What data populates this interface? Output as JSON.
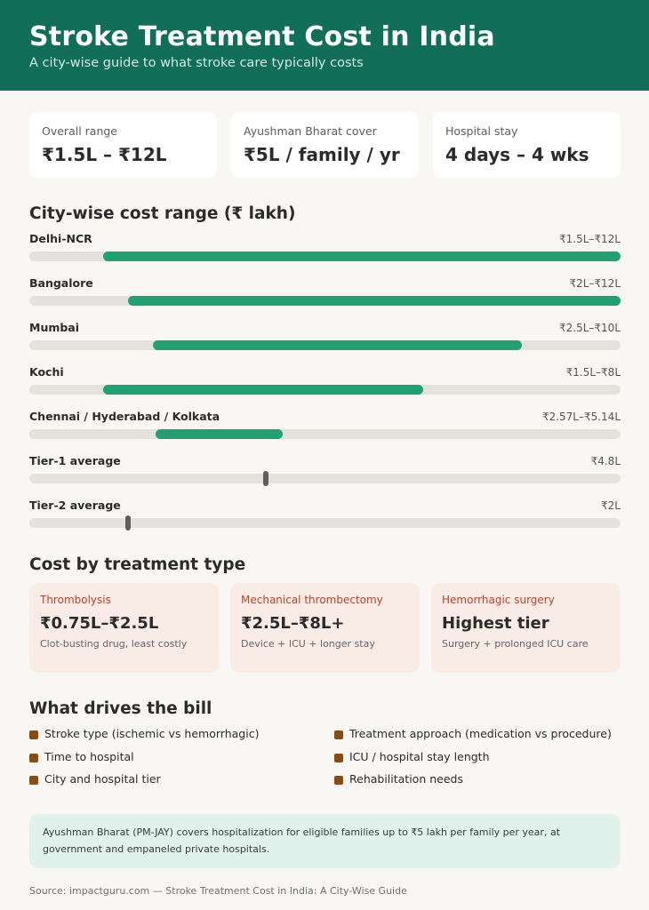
{
  "header": {
    "title": "Stroke Treatment Cost in India",
    "subtitle": "A city-wise guide to what stroke care typically costs"
  },
  "stats": [
    {
      "label": "Overall range",
      "value": "₹1.5L – ₹12L"
    },
    {
      "label": "Ayushman Bharat cover",
      "value": "₹5L / family / yr"
    },
    {
      "label": "Hospital stay",
      "value": "4 days – 4 wks"
    }
  ],
  "city_section_title": "City-wise cost range (₹ lakh)",
  "chart_data": {
    "type": "bar",
    "title": "City-wise cost range (₹ lakh)",
    "xlim": [
      0,
      12
    ],
    "rows": [
      {
        "label": "Delhi-NCR",
        "value_text": "₹1.5L–₹12L",
        "min": 1.5,
        "max": 12
      },
      {
        "label": "Bangalore",
        "value_text": "₹2L–₹12L",
        "min": 2,
        "max": 12
      },
      {
        "label": "Mumbai",
        "value_text": "₹2.5L–₹10L",
        "min": 2.5,
        "max": 10
      },
      {
        "label": "Kochi",
        "value_text": "₹1.5L–₹8L",
        "min": 1.5,
        "max": 8
      },
      {
        "label": "Chennai / Hyderabad / Kolkata",
        "value_text": "₹2.57L–₹5.14L",
        "min": 2.57,
        "max": 5.14
      },
      {
        "label": "Tier-1 average",
        "value_text": "₹4.8L",
        "point": 4.8
      },
      {
        "label": "Tier-2 average",
        "value_text": "₹2L",
        "point": 2
      }
    ]
  },
  "treatment_section_title": "Cost by treatment type",
  "treatments": [
    {
      "name": "Thrombolysis",
      "value": "₹0.75L–₹2.5L",
      "note": "Clot-busting drug, least costly"
    },
    {
      "name": "Mechanical thrombectomy",
      "value": "₹2.5L–₹8L+",
      "note": "Device + ICU + longer stay"
    },
    {
      "name": "Hemorrhagic surgery",
      "value": "Highest tier",
      "note": "Surgery + prolonged ICU care"
    }
  ],
  "drivers_section_title": "What drives the bill",
  "drivers": [
    "Stroke type (ischemic vs hemorrhagic)",
    "Treatment approach (medication vs procedure)",
    "Time to hospital",
    "ICU / hospital stay length",
    "City and hospital tier",
    "Rehabilitation needs"
  ],
  "colors": {
    "header_bg": "#116e58",
    "bar": "#21a072",
    "track": "#e4e2dc",
    "marker": "#5e5e5e",
    "treatment_card_bg": "#f9ebe6",
    "treatment_name": "#b5452a",
    "bullet": "#8a4b10",
    "note_bg": "#e0f2eb"
  },
  "note": "Ayushman Bharat (PM-JAY) covers hospitalization for eligible families up to ₹5 lakh per family per year, at government and empaneled private hospitals.",
  "source": "Source: impactguru.com — Stroke Treatment Cost in India: A City-Wise Guide"
}
